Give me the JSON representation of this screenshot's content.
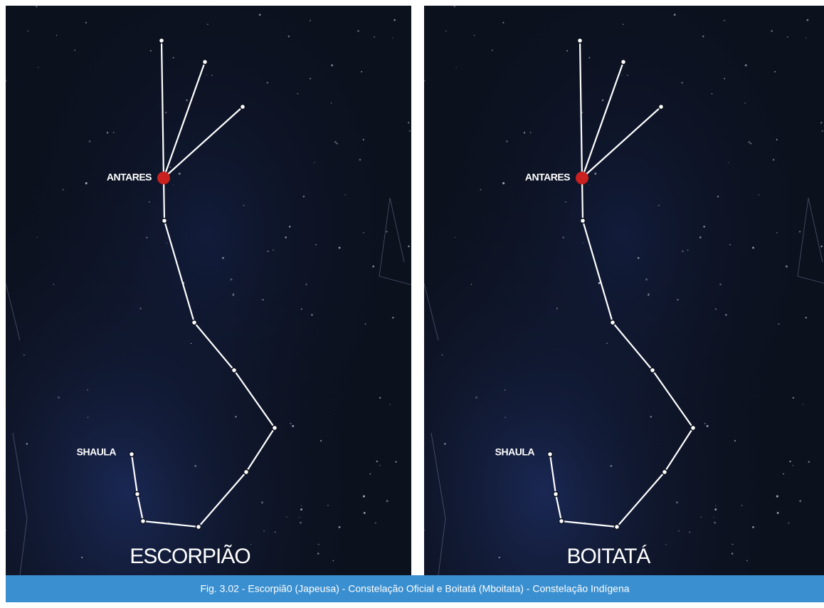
{
  "panels": [
    {
      "title": "ESCORPIÃO",
      "antares": "ANTARES",
      "shaula": "SHAULA"
    },
    {
      "title": "BOITATÁ",
      "antares": "ANTARES",
      "shaula": "SHAULA"
    }
  ],
  "caption": "Fig. 3.02 - Escorpiã0 (Japeusa) - Constelação Oficial e Boitatá (Mboitata) - Constelação Indígena"
}
